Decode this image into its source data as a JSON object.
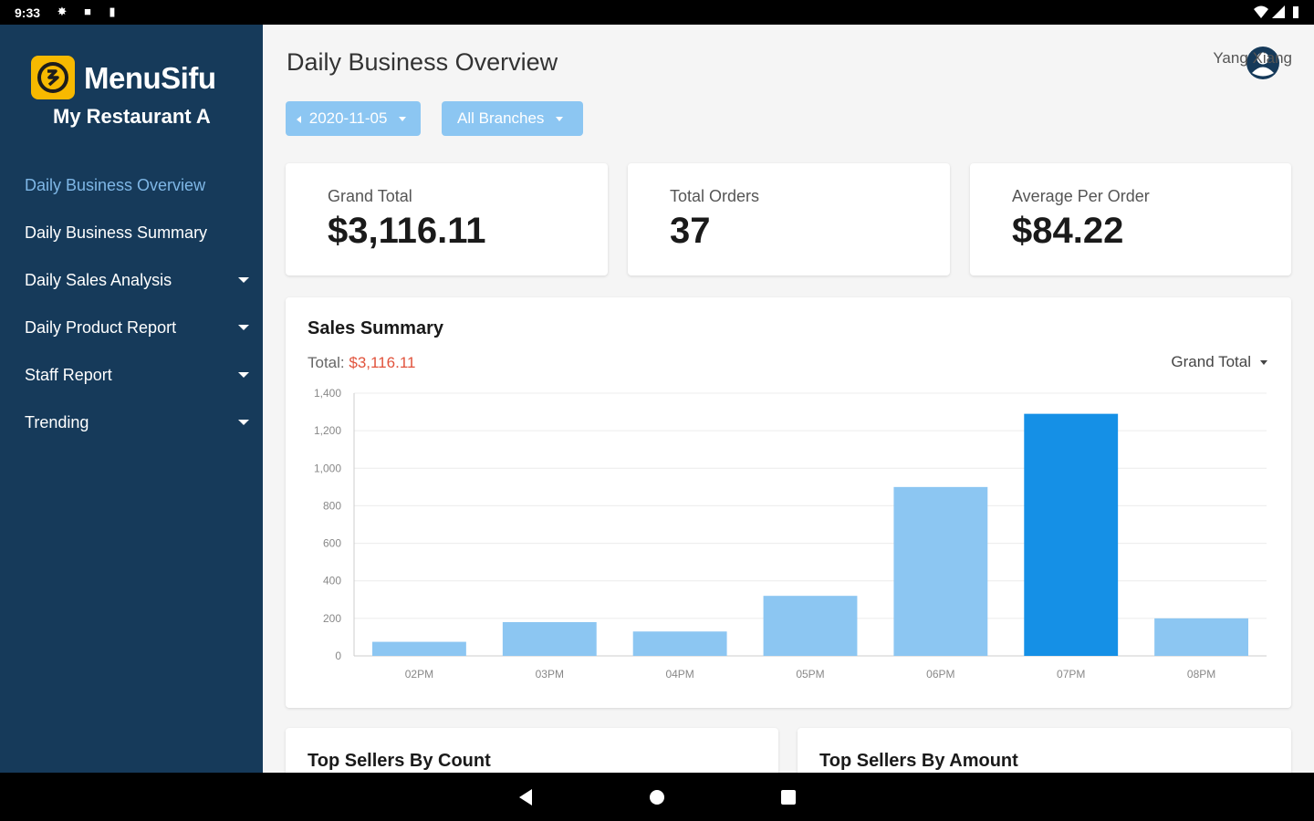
{
  "status_bar": {
    "time": "9:33"
  },
  "sidebar": {
    "brand": "MenuSifu",
    "restaurant": "My Restaurant A",
    "items": [
      {
        "label": "Daily Business Overview",
        "active": true,
        "expandable": false
      },
      {
        "label": "Daily Business Summary",
        "active": false,
        "expandable": false
      },
      {
        "label": "Daily Sales Analysis",
        "active": false,
        "expandable": true
      },
      {
        "label": "Daily Product Report",
        "active": false,
        "expandable": true
      },
      {
        "label": "Staff Report",
        "active": false,
        "expandable": true
      },
      {
        "label": "Trending",
        "active": false,
        "expandable": true
      }
    ]
  },
  "header": {
    "title": "Daily Business Overview",
    "user_name": "Yang Xiang"
  },
  "filters": {
    "date": "2020-11-05",
    "branch": "All Branches"
  },
  "stats": [
    {
      "label": "Grand Total",
      "value": "$3,116.11"
    },
    {
      "label": "Total Orders",
      "value": "37"
    },
    {
      "label": "Average Per Order",
      "value": "$84.22"
    }
  ],
  "sales_summary": {
    "title": "Sales Summary",
    "total_label": "Total: ",
    "total_value": "$3,116.11",
    "metric": "Grand Total"
  },
  "chart_data": {
    "type": "bar",
    "categories": [
      "02PM",
      "03PM",
      "04PM",
      "05PM",
      "06PM",
      "07PM",
      "08PM"
    ],
    "values": [
      75,
      180,
      130,
      320,
      900,
      1290,
      200
    ],
    "highlight_index": 5,
    "ylim": [
      0,
      1400
    ],
    "yticks": [
      "0",
      "200",
      "400",
      "600",
      "800",
      "1,000",
      "1,200",
      "1,400"
    ],
    "grid": true,
    "colors": {
      "bar": "#8cc6f2",
      "highlight": "#1590e6"
    }
  },
  "bottom_sections": {
    "by_count": "Top Sellers By Count",
    "by_amount": "Top Sellers By Amount"
  },
  "colors": {
    "sidebar": "#163a5a",
    "accent": "#f7b900",
    "active_menu": "#7fb7e6",
    "pill": "#8cc6f2",
    "total_amount": "#e1533c"
  }
}
